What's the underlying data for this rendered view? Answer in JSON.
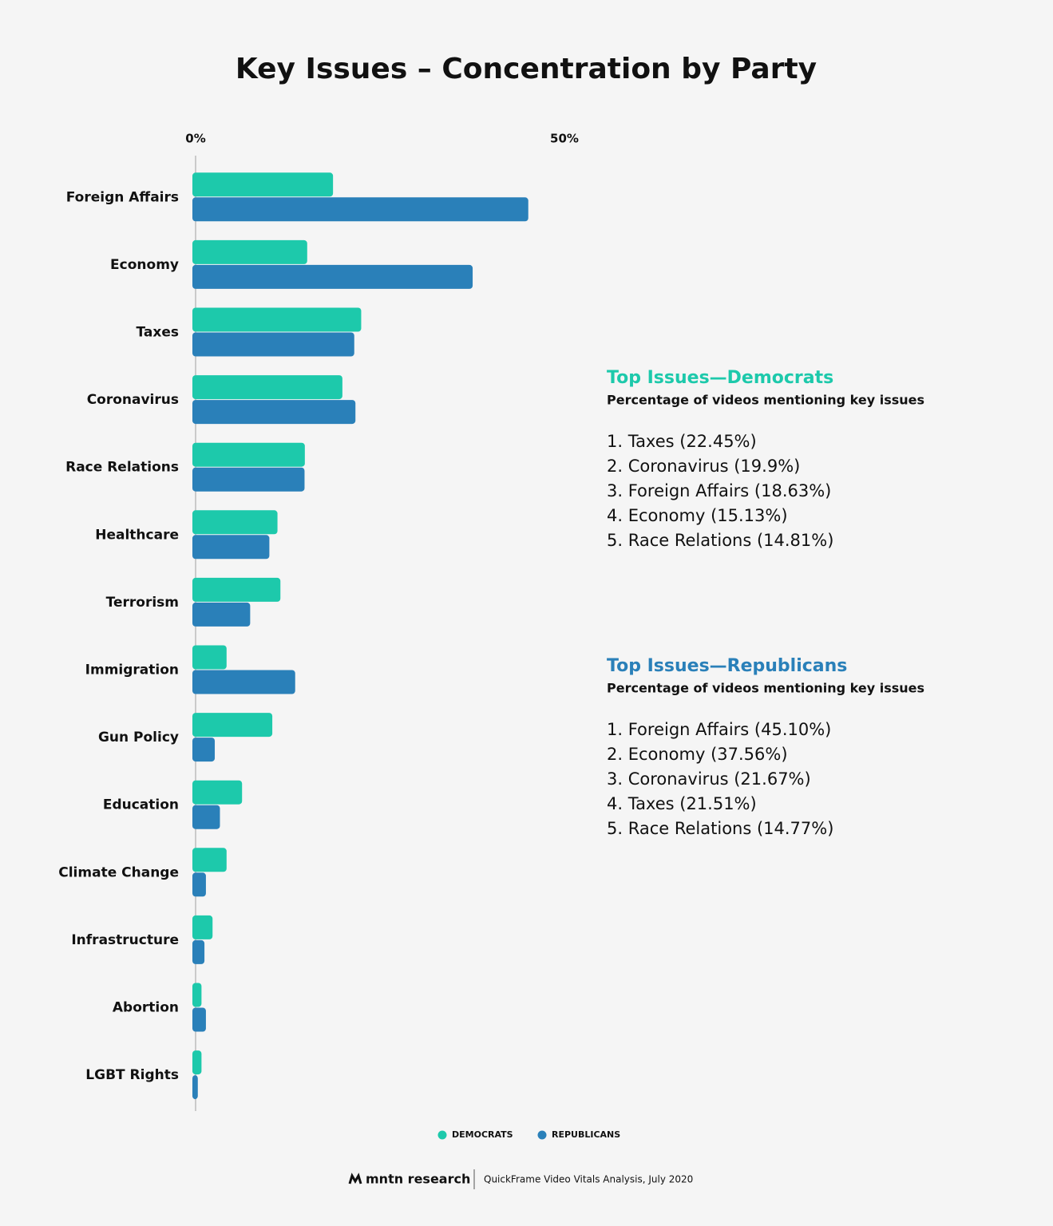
{
  "chart_data": {
    "type": "hbar",
    "title": "Key Issues – Concentration by Party",
    "categories": [
      "Foreign Affairs",
      "Economy",
      "Taxes",
      "Coronavirus",
      "Race Relations",
      "Healthcare",
      "Terrorism",
      "Immigration",
      "Gun Policy",
      "Education",
      "Climate Change",
      "Infrastructure",
      "Abortion",
      "LGBT Rights"
    ],
    "series": [
      {
        "name": "DEMOCRATS",
        "color": "#1dc9ab",
        "values": [
          18.63,
          15.13,
          22.45,
          19.9,
          14.81,
          11.1,
          11.5,
          4.2,
          10.4,
          6.3,
          4.2,
          2.3,
          0.8,
          0.8
        ]
      },
      {
        "name": "REPUBLICANS",
        "color": "#2a80b9",
        "values": [
          45.1,
          37.56,
          21.51,
          21.67,
          14.77,
          10.0,
          7.4,
          13.5,
          2.6,
          3.3,
          1.4,
          1.2,
          1.4,
          0.3
        ]
      }
    ],
    "xlim": [
      0,
      50
    ],
    "xticks": [
      {
        "value": 0,
        "label": "0%"
      },
      {
        "value": 50,
        "label": "50%"
      }
    ],
    "legend": "bottom"
  },
  "side_panels": [
    {
      "heading": "Top Issues—Democrats",
      "subheading": "Percentage of videos mentioning key issues",
      "color": "#1dc9ab",
      "items": [
        "1. Taxes (22.45%)",
        "2. Coronavirus (19.9%)",
        "3. Foreign Affairs (18.63%)",
        "4. Economy (15.13%)",
        "5. Race Relations (14.81%)"
      ]
    },
    {
      "heading": "Top Issues—Republicans",
      "subheading": "Percentage of videos mentioning key issues",
      "color": "#2a80b9",
      "items": [
        "1. Foreign Affairs (45.10%)",
        "2. Economy (37.56%)",
        "3. Coronavirus (21.67%)",
        "4. Taxes (21.51%)",
        "5. Race Relations (14.77%)"
      ]
    }
  ],
  "footer": {
    "brand": "mntn research",
    "source": "QuickFrame Video Vitals Analysis, July 2020"
  }
}
